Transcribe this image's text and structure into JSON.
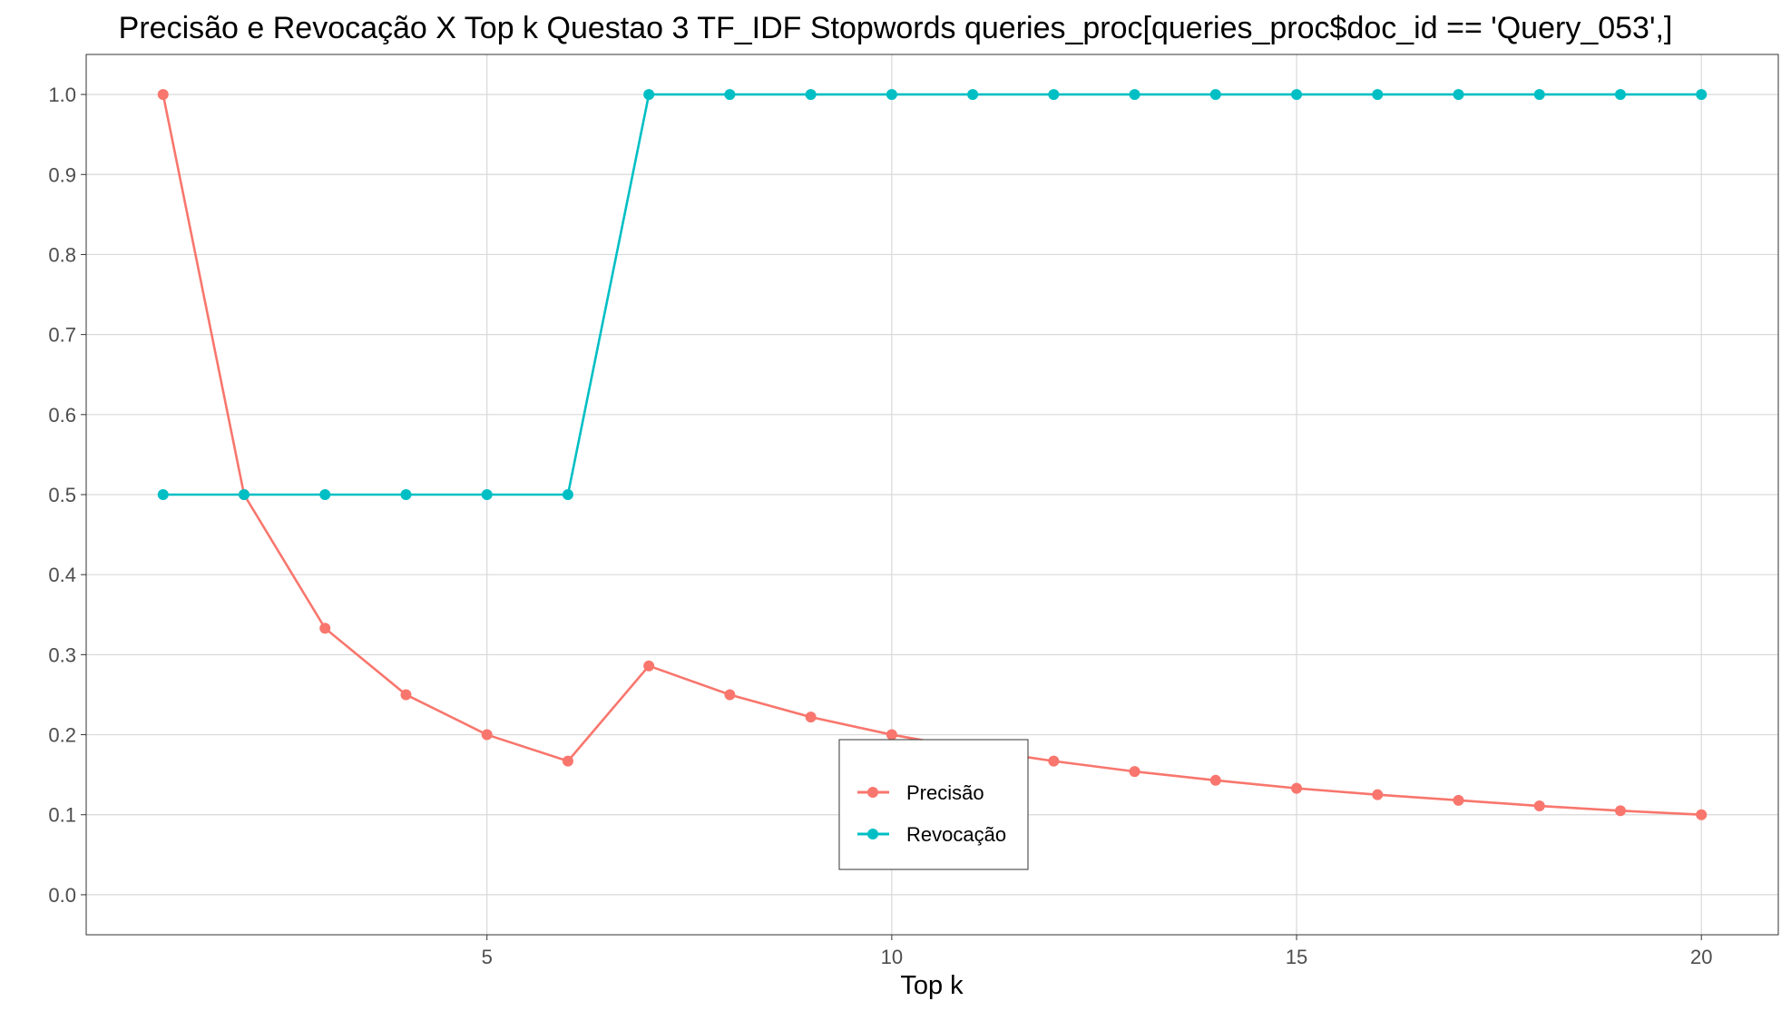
{
  "chart_data": {
    "type": "line",
    "title": "Precisão e Revocação X Top k Questao 3 TF_IDF Stopwords queries_proc[queries_proc$doc_id == 'Query_053',]",
    "xlabel": "Top k",
    "ylabel": "",
    "xlim": [
      0.05,
      20.95
    ],
    "ylim": [
      -0.05,
      1.05
    ],
    "x_ticks": [
      5,
      10,
      15,
      20
    ],
    "x_tick_labels": [
      "5",
      "10",
      "15",
      "20"
    ],
    "y_ticks": [
      0.0,
      0.1,
      0.2,
      0.3,
      0.4,
      0.5,
      0.6,
      0.7,
      0.8,
      0.9,
      1.0
    ],
    "y_tick_labels": [
      "0.0",
      "0.1",
      "0.2",
      "0.3",
      "0.4",
      "0.5",
      "0.6",
      "0.7",
      "0.8",
      "0.9",
      "1.0"
    ],
    "x": [
      1,
      2,
      3,
      4,
      5,
      6,
      7,
      8,
      9,
      10,
      11,
      12,
      13,
      14,
      15,
      16,
      17,
      18,
      19,
      20
    ],
    "series": [
      {
        "name": "Precisão",
        "color": "#f8766d",
        "values": [
          1.0,
          0.5,
          0.333,
          0.25,
          0.2,
          0.167,
          0.286,
          0.25,
          0.222,
          0.2,
          0.182,
          0.167,
          0.154,
          0.143,
          0.133,
          0.125,
          0.118,
          0.111,
          0.105,
          0.1
        ]
      },
      {
        "name": "Revocação",
        "color": "#00bfc4",
        "values": [
          0.5,
          0.5,
          0.5,
          0.5,
          0.5,
          0.5,
          1.0,
          1.0,
          1.0,
          1.0,
          1.0,
          1.0,
          1.0,
          1.0,
          1.0,
          1.0,
          1.0,
          1.0,
          1.0,
          1.0
        ]
      }
    ],
    "grid": true,
    "legend_position": "inside-bottom-center"
  }
}
